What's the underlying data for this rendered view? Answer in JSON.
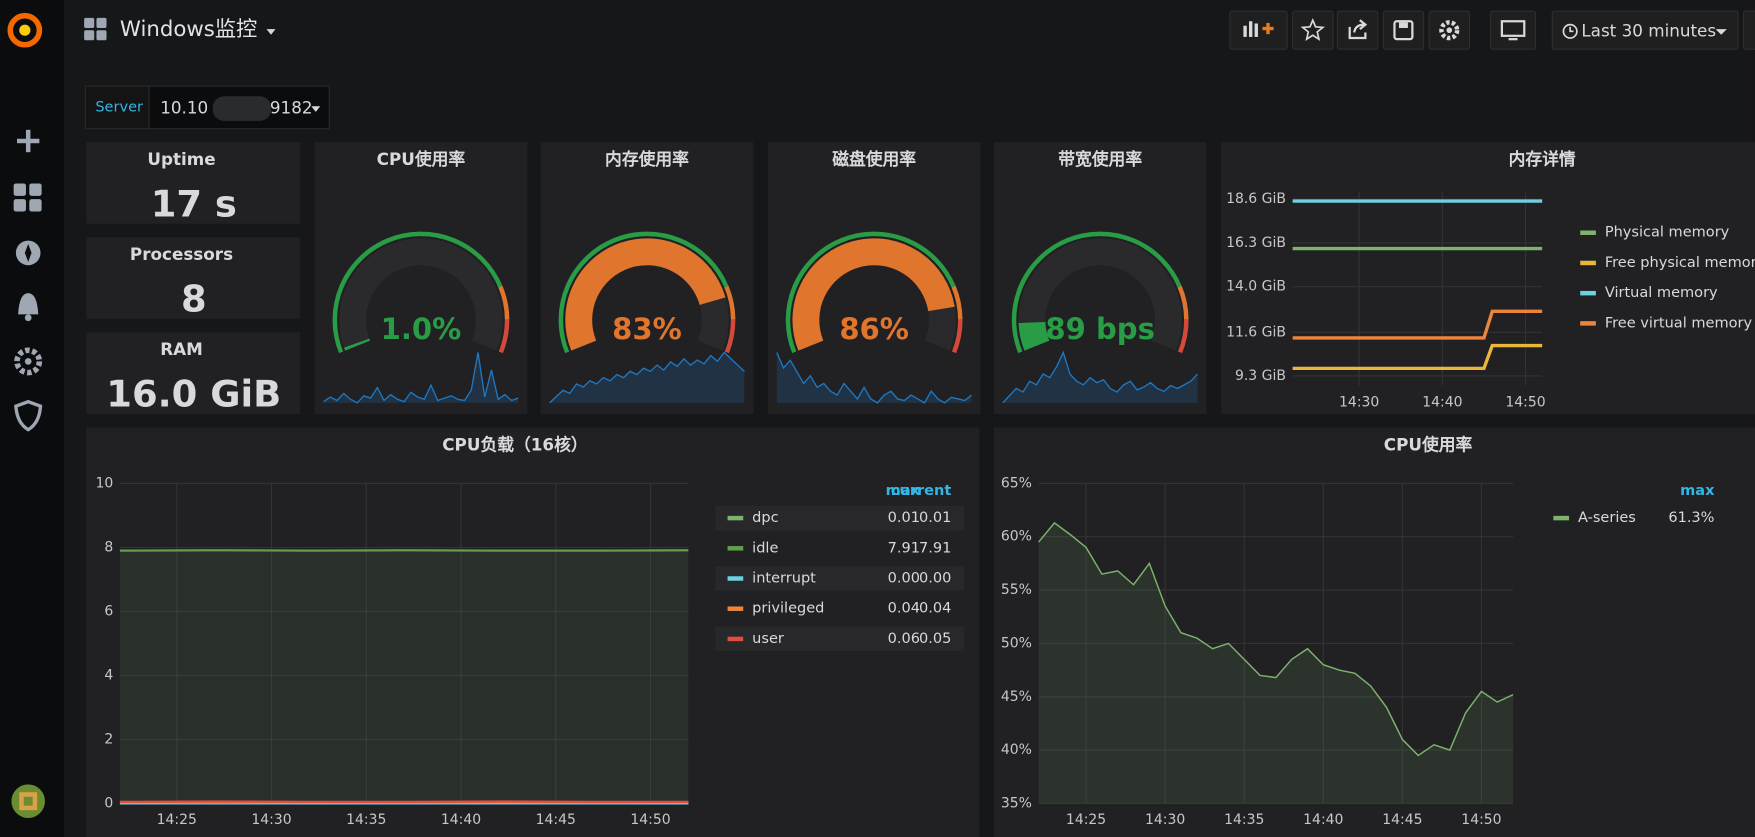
{
  "header": {
    "title": "Windows监控",
    "time_range": "Last 30 minutes"
  },
  "variables": {
    "label": "Server",
    "value_start": "10.10",
    "value_end": "9182"
  },
  "stats": [
    {
      "title": "Uptime",
      "value": "17 s"
    },
    {
      "title": "Processors",
      "value": 8
    },
    {
      "title": "RAM",
      "value": "16.0 GiB"
    }
  ],
  "chart_data": [
    {
      "type": "gauge",
      "title": "CPU使用率",
      "value": 1.0,
      "value_label": "1.0%",
      "ylim": [
        0,
        100
      ],
      "color": "#299c46",
      "thresholds": [
        {
          "value": 80,
          "color": "#e0752d"
        },
        {
          "value": 90,
          "color": "#d44a3a"
        }
      ],
      "sparkline": {
        "color": "#1f78c1",
        "values": [
          0.8,
          1.2,
          0.9,
          1.5,
          1,
          0.7,
          1.3,
          1.1,
          2,
          0.9,
          1.4,
          1,
          0.8,
          1.6,
          1.2,
          1,
          2.2,
          0.9,
          1.1,
          1.3,
          1,
          0.9,
          1.8,
          5,
          1.2,
          3.5,
          1,
          1.4,
          0.9,
          1.1
        ]
      }
    },
    {
      "type": "gauge",
      "title": "内存使用率",
      "value": 83,
      "value_label": "83%",
      "ylim": [
        0,
        100
      ],
      "color": "#299c46",
      "thresholds": [
        {
          "value": 80,
          "color": "#e0752d"
        },
        {
          "value": 90,
          "color": "#d44a3a"
        }
      ],
      "sparkline": {
        "color": "#1f78c1",
        "values": [
          78,
          79,
          80,
          79.5,
          81,
          80.5,
          81.5,
          81,
          82,
          81.5,
          82.5,
          82,
          83,
          82.5,
          83.5,
          83,
          84,
          83.2,
          84.5,
          83.8,
          85,
          84,
          84.8,
          84.2,
          85.5,
          84.6,
          86,
          85,
          84,
          83
        ]
      }
    },
    {
      "type": "gauge",
      "title": "磁盘使用率",
      "value": 86,
      "value_label": "86%",
      "ylim": [
        0,
        100
      ],
      "color": "#299c46",
      "thresholds": [
        {
          "value": 80,
          "color": "#e0752d"
        },
        {
          "value": 90,
          "color": "#d44a3a"
        }
      ],
      "sparkline": {
        "color": "#1f78c1",
        "values": [
          88,
          86,
          87,
          85.5,
          84,
          85,
          83.5,
          84,
          83,
          82.5,
          84,
          83,
          82,
          83.5,
          82,
          81.5,
          82.5,
          83,
          82,
          81.8,
          82.5,
          82,
          81.5,
          83,
          82,
          81.5,
          82.2,
          82,
          81.8,
          82.5
        ]
      }
    },
    {
      "type": "gauge",
      "title": "带宽使用率",
      "value": 89,
      "value_label": "89 bps",
      "ylim": [
        0,
        1000
      ],
      "color": "#299c46",
      "thresholds": [
        {
          "value": 800,
          "color": "#e0752d"
        },
        {
          "value": 900,
          "color": "#d44a3a"
        }
      ],
      "sparkline": {
        "color": "#1f78c1",
        "values": [
          60,
          70,
          80,
          75,
          90,
          85,
          100,
          95,
          110,
          130,
          100,
          90,
          85,
          95,
          88,
          92,
          80,
          75,
          85,
          90,
          78,
          82,
          88,
          80,
          76,
          84,
          80,
          85,
          90,
          100
        ]
      }
    },
    {
      "type": "line",
      "title": "内存详情",
      "x": [
        "14:22",
        "14:30",
        "14:40",
        "14:45",
        "14:46",
        "14:52"
      ],
      "xlim": [
        "14:22",
        "14:52"
      ],
      "xticks": [
        "14:30",
        "14:40",
        "14:50"
      ],
      "ylim": [
        8.8,
        19.0
      ],
      "yticks": [
        {
          "value": 9.3,
          "label": "9.3 GiB"
        },
        {
          "value": 11.6,
          "label": "11.6 GiB"
        },
        {
          "value": 14.0,
          "label": "14.0 GiB"
        },
        {
          "value": 16.3,
          "label": "16.3 GiB"
        },
        {
          "value": 18.6,
          "label": "18.6 GiB"
        }
      ],
      "grid": true,
      "series": [
        {
          "name": "Physical memory",
          "color": "#7eb26d",
          "values": [
            16.0,
            16.0,
            16.0,
            16.0,
            16.0,
            16.0
          ]
        },
        {
          "name": "Free physical memory",
          "color": "#eab839",
          "values": [
            9.7,
            9.7,
            9.7,
            9.7,
            10.9,
            10.9
          ]
        },
        {
          "name": "Virtual memory",
          "color": "#6ed0e0",
          "values": [
            18.5,
            18.5,
            18.5,
            18.5,
            18.5,
            18.5
          ]
        },
        {
          "name": "Free virtual memory",
          "color": "#ef843c",
          "values": [
            11.3,
            11.3,
            11.3,
            11.3,
            12.7,
            12.7
          ]
        }
      ]
    },
    {
      "type": "line",
      "title": "CPU负载（16核）",
      "x": [
        "14:22",
        "14:27",
        "14:32",
        "14:37",
        "14:42",
        "14:47",
        "14:52"
      ],
      "xlim": [
        "14:22",
        "14:52"
      ],
      "xticks": [
        "14:25",
        "14:30",
        "14:35",
        "14:40",
        "14:45",
        "14:50"
      ],
      "ylim": [
        0,
        10
      ],
      "yticks": [
        0,
        2,
        4,
        6,
        8,
        10
      ],
      "grid": true,
      "legend": {
        "columns": [
          "max",
          "current"
        ]
      },
      "series": [
        {
          "name": "dpc",
          "color": "#7eb26d",
          "values": [
            0.01,
            0.01,
            0.01,
            0.01,
            0.01,
            0.01,
            0.01
          ],
          "legend_values": [
            "0.01",
            "0.01"
          ]
        },
        {
          "name": "idle",
          "color": "#629e51",
          "values": [
            7.9,
            7.91,
            7.9,
            7.91,
            7.9,
            7.9,
            7.91
          ],
          "legend_values": [
            "7.91",
            "7.91"
          ]
        },
        {
          "name": "interrupt",
          "color": "#6ed0e0",
          "values": [
            0,
            0,
            0,
            0,
            0,
            0,
            0
          ],
          "legend_values": [
            "0.00",
            "0.00"
          ]
        },
        {
          "name": "privileged",
          "color": "#ef843c",
          "values": [
            0.04,
            0.03,
            0.04,
            0.03,
            0.04,
            0.03,
            0.04
          ],
          "legend_values": [
            "0.04",
            "0.04"
          ]
        },
        {
          "name": "user",
          "color": "#e24d42",
          "values": [
            0.05,
            0.06,
            0.05,
            0.05,
            0.06,
            0.05,
            0.05
          ],
          "legend_values": [
            "0.06",
            "0.05"
          ]
        }
      ]
    },
    {
      "type": "line",
      "title": "CPU使用率",
      "x": [
        "14:22",
        "14:23",
        "14:24",
        "14:25",
        "14:26",
        "14:27",
        "14:28",
        "14:29",
        "14:30",
        "14:31",
        "14:32",
        "14:33",
        "14:34",
        "14:35",
        "14:36",
        "14:37",
        "14:38",
        "14:39",
        "14:40",
        "14:41",
        "14:42",
        "14:43",
        "14:44",
        "14:45",
        "14:46",
        "14:47",
        "14:48",
        "14:49",
        "14:50",
        "14:51",
        "14:52"
      ],
      "xlim": [
        "14:22",
        "14:52"
      ],
      "xticks": [
        "14:25",
        "14:30",
        "14:35",
        "14:40",
        "14:45",
        "14:50"
      ],
      "ylim": [
        35,
        65
      ],
      "yticks": [
        {
          "value": 35,
          "label": "35%"
        },
        {
          "value": 40,
          "label": "40%"
        },
        {
          "value": 45,
          "label": "45%"
        },
        {
          "value": 50,
          "label": "50%"
        },
        {
          "value": 55,
          "label": "55%"
        },
        {
          "value": 60,
          "label": "60%"
        },
        {
          "value": 65,
          "label": "65%"
        }
      ],
      "grid": true,
      "legend": {
        "columns": [
          "max"
        ]
      },
      "series": [
        {
          "name": "A-series",
          "color": "#7eb26d",
          "values": [
            59.5,
            61.3,
            60.2,
            59,
            56.5,
            56.8,
            55.5,
            57.5,
            53.5,
            51,
            50.5,
            49.5,
            50,
            48.5,
            47,
            46.8,
            48.5,
            49.5,
            48,
            47.5,
            47.2,
            46,
            44,
            41,
            39.5,
            40.5,
            40,
            43.5,
            45.5,
            44.5,
            45.2
          ],
          "legend_values": [
            "61.3%"
          ]
        }
      ]
    }
  ]
}
